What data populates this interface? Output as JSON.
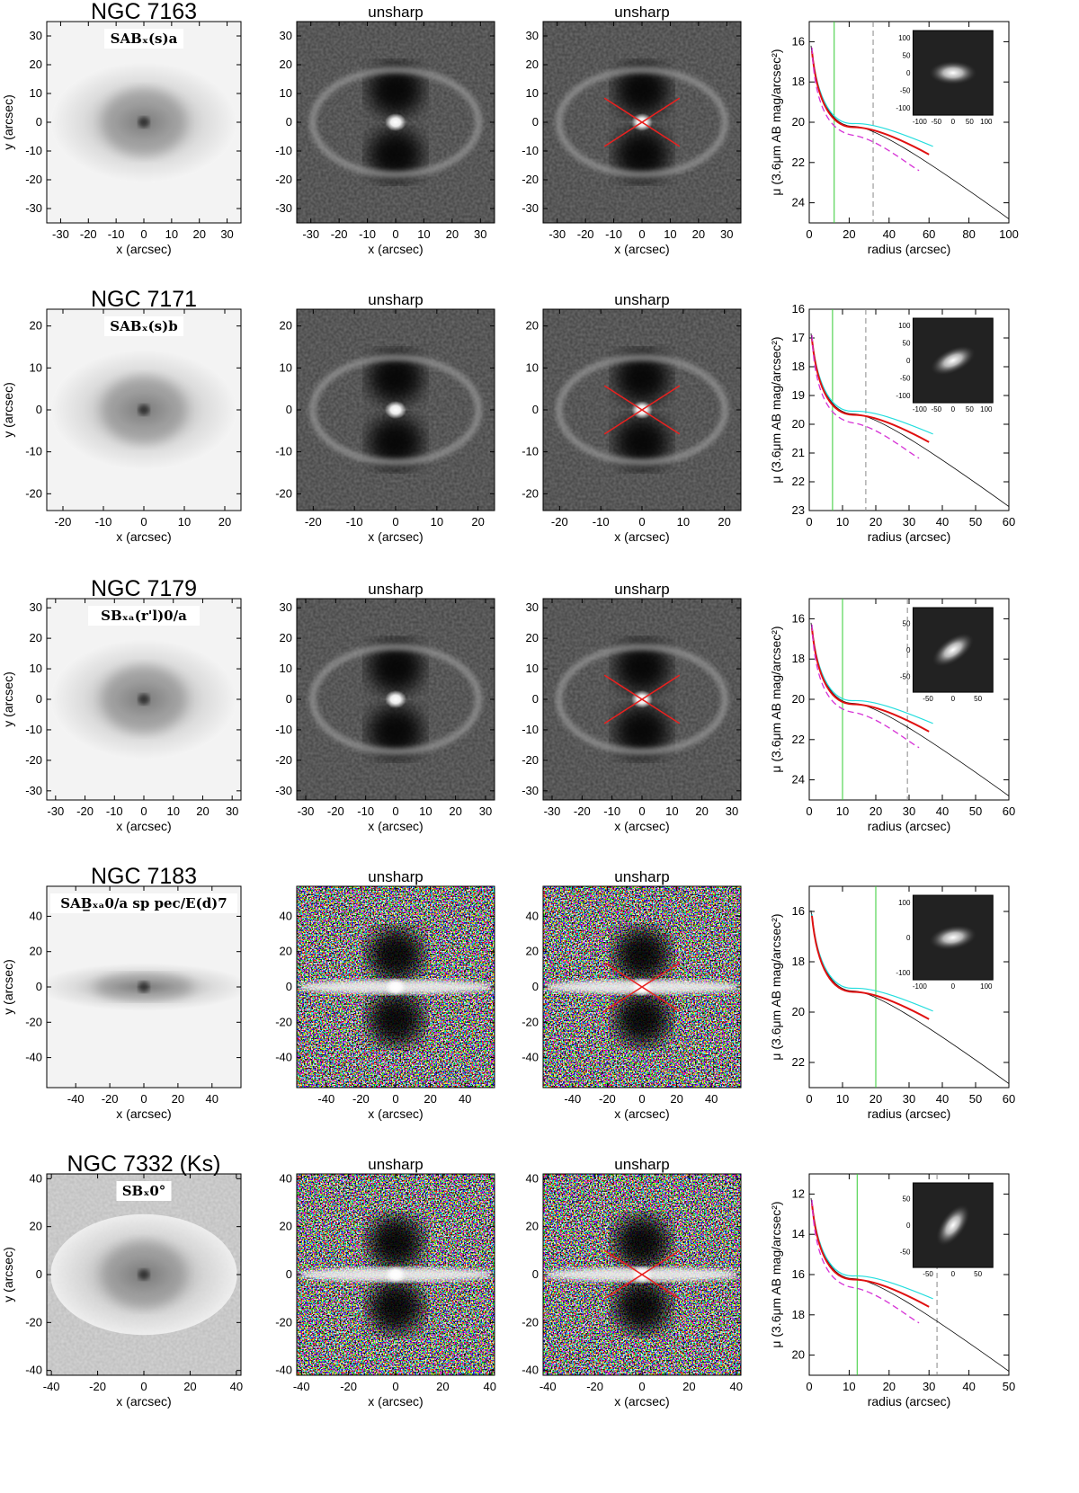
{
  "labels": {
    "unsharp": "unsharp",
    "x_axis": "x (arcsec)",
    "y_axis": "y (arcsec)",
    "radius_axis": "radius (arcsec)",
    "mu_axis": "μ (3.6μm AB mag/arcsec²)"
  },
  "rows": [
    {
      "name": "NGC 7163",
      "morphology": "SABₓ(s)a",
      "image_ticks": [
        -30,
        -20,
        -10,
        0,
        10,
        20,
        30
      ],
      "image_range": [
        -35,
        35
      ],
      "profile": {
        "x_range": [
          0,
          100
        ],
        "y_range": [
          25,
          15
        ],
        "x_ticks": [
          0,
          20,
          40,
          60,
          80,
          100
        ],
        "y_ticks": [
          16,
          18,
          20,
          22,
          24
        ],
        "green_line": 12.5,
        "gray_dash": 32,
        "inset_ticks": [
          -100,
          -50,
          0,
          50,
          100
        ]
      }
    },
    {
      "name": "NGC 7171",
      "morphology": "SABₓ(s)b",
      "image_ticks": [
        -20,
        -10,
        0,
        10,
        20
      ],
      "image_range": [
        -24,
        24
      ],
      "profile": {
        "x_range": [
          0,
          60
        ],
        "y_range": [
          23,
          16
        ],
        "x_ticks": [
          0,
          10,
          20,
          30,
          40,
          50,
          60
        ],
        "y_ticks": [
          16,
          17,
          18,
          19,
          20,
          21,
          22,
          23
        ],
        "green_line": 7,
        "gray_dash": 17,
        "inset_ticks": [
          -100,
          -50,
          0,
          50,
          100
        ]
      }
    },
    {
      "name": "NGC 7179",
      "morphology": "SBₓₐ(r'l)0/a",
      "image_ticks": [
        -30,
        -20,
        -10,
        0,
        10,
        20,
        30
      ],
      "image_range": [
        -33,
        33
      ],
      "profile": {
        "x_range": [
          0,
          60
        ],
        "y_range": [
          25,
          15
        ],
        "x_ticks": [
          0,
          10,
          20,
          30,
          40,
          50,
          60
        ],
        "y_ticks": [
          16,
          18,
          20,
          22,
          24
        ],
        "green_line": 10,
        "gray_dash": 29.5,
        "inset_ticks": [
          -50,
          0,
          50
        ]
      }
    },
    {
      "name": "NGC 7183",
      "morphology": "SAB̲ₓₐ0/a sp pec/E(d)7",
      "image_ticks": [
        -40,
        -20,
        0,
        20,
        40
      ],
      "image_range": [
        -57,
        57
      ],
      "profile": {
        "x_range": [
          0,
          60
        ],
        "y_range": [
          23,
          15
        ],
        "x_ticks": [
          0,
          10,
          20,
          30,
          40,
          50,
          60
        ],
        "y_ticks": [
          16,
          18,
          20,
          22
        ],
        "green_line": 20,
        "gray_dash": null,
        "inset_ticks": [
          -100,
          0,
          100
        ]
      }
    },
    {
      "name": "NGC 7332   (Ks)",
      "morphology": "SBₓ0°",
      "image_ticks": [
        -40,
        -20,
        0,
        20,
        40
      ],
      "image_range": [
        -42,
        42
      ],
      "profile": {
        "x_range": [
          0,
          50
        ],
        "y_range": [
          21,
          11
        ],
        "x_ticks": [
          0,
          10,
          20,
          30,
          40,
          50
        ],
        "y_ticks": [
          12,
          14,
          16,
          18,
          20
        ],
        "green_line": 12,
        "gray_dash": 32,
        "inset_ticks": [
          -50,
          0,
          50
        ]
      }
    }
  ]
}
